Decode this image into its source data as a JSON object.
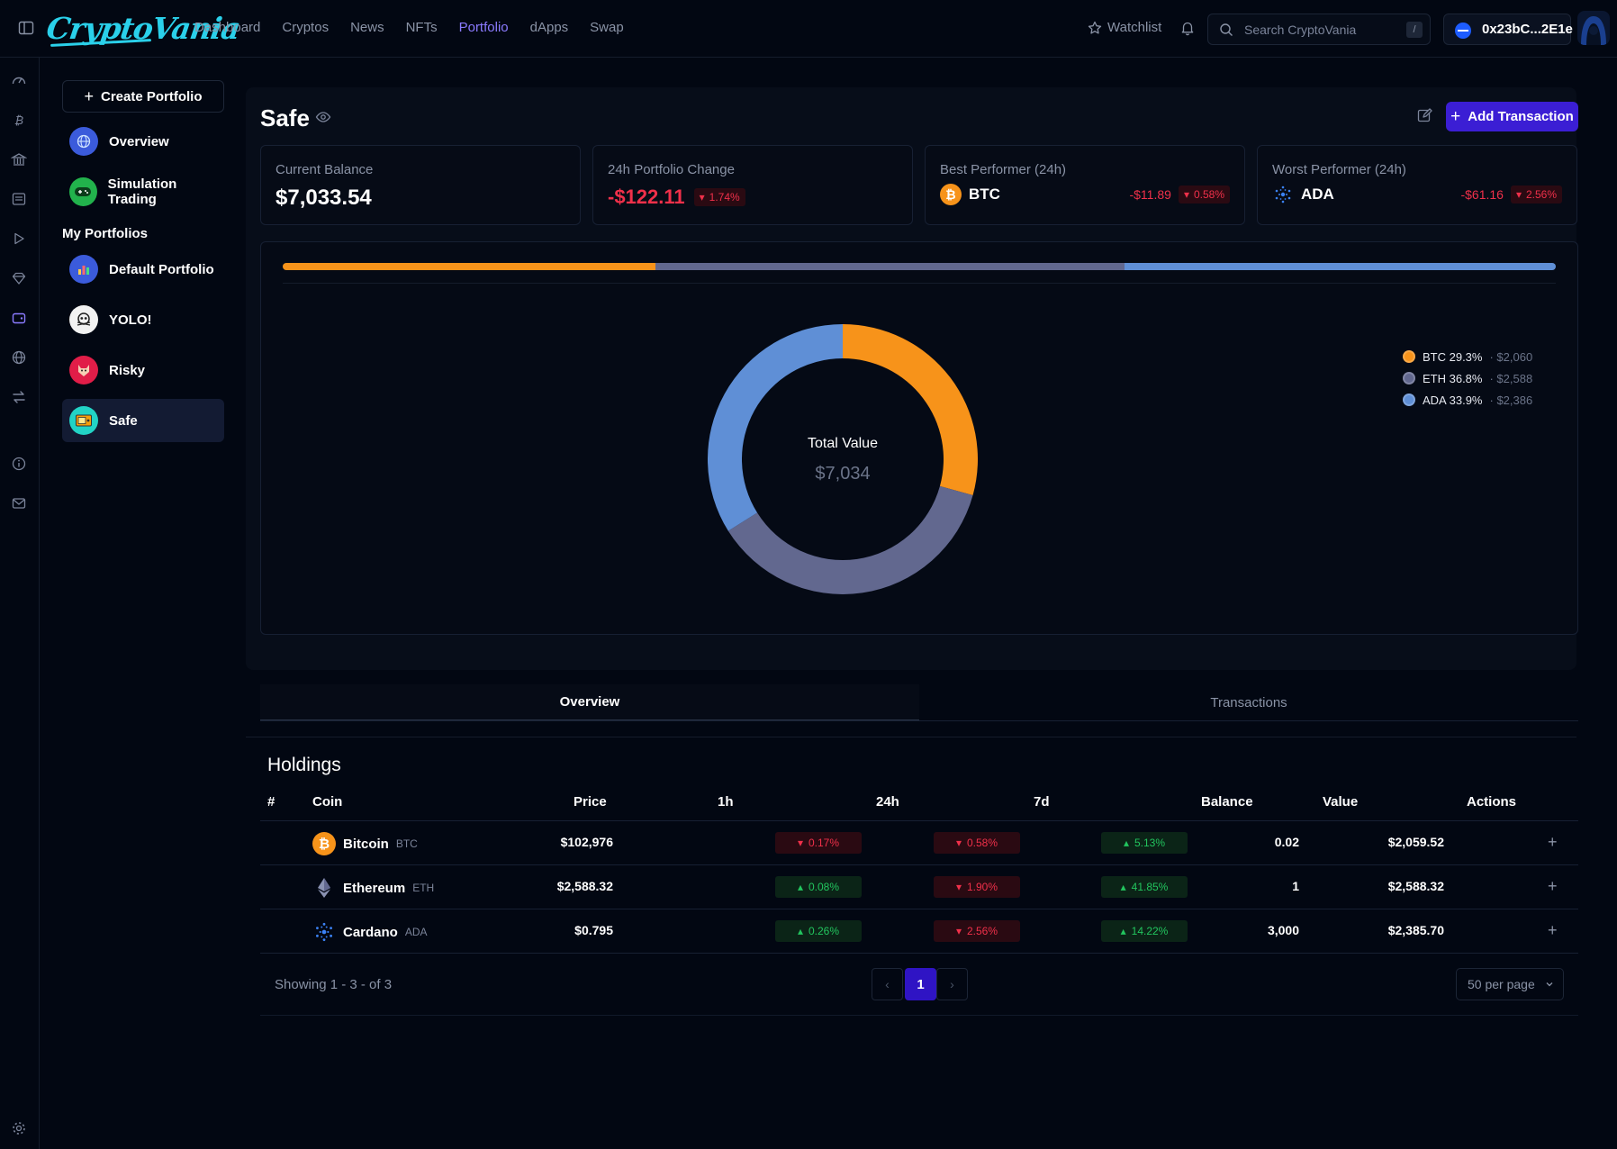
{
  "app": {
    "logo": "CryptoVania"
  },
  "nav": {
    "items": [
      "Dashboard",
      "Cryptos",
      "News",
      "NFTs",
      "Portfolio",
      "dApps",
      "Swap"
    ],
    "active": "Portfolio"
  },
  "header": {
    "watchlist": "Watchlist",
    "search_placeholder": "Search CryptoVania",
    "search_shortcut": "/",
    "wallet": "0x23bC...2E1e"
  },
  "sidebar": {
    "create": "Create Portfolio",
    "top_items": [
      "Overview",
      "Simulation Trading"
    ],
    "heading": "My Portfolios",
    "portfolios": [
      "Default Portfolio",
      "YOLO!",
      "Risky",
      "Safe"
    ],
    "active": "Safe"
  },
  "portfolio": {
    "name": "Safe",
    "add_transaction": "Add Transaction",
    "stats": {
      "balance_label": "Current Balance",
      "balance": "$7,033.54",
      "change_label": "24h Portfolio Change",
      "change": "-$122.11",
      "change_pct": "1.74%",
      "best_label": "Best Performer (24h)",
      "best_coin": "BTC",
      "best_change": "-$11.89",
      "best_pct": "0.58%",
      "worst_label": "Worst Performer (24h)",
      "worst_coin": "ADA",
      "worst_change": "-$61.16",
      "worst_pct": "2.56%"
    }
  },
  "chart_data": {
    "type": "pie",
    "center_label": "Total Value",
    "center_value": "$7,034",
    "slices": [
      {
        "name": "BTC",
        "pct": 29.3,
        "pct_label": "BTC 29.3%",
        "value_label": "$2,060",
        "color": "#f7931a"
      },
      {
        "name": "ETH",
        "pct": 36.8,
        "pct_label": "ETH 36.8%",
        "value_label": "$2,588",
        "color": "#62688f"
      },
      {
        "name": "ADA",
        "pct": 33.9,
        "pct_label": "ADA 33.9%",
        "value_label": "$2,386",
        "color": "#5f8fd6"
      }
    ]
  },
  "tabs": [
    "Overview",
    "Transactions"
  ],
  "holdings": {
    "title": "Holdings",
    "columns": [
      "#",
      "Coin",
      "Price",
      "1h",
      "24h",
      "7d",
      "Balance",
      "Value",
      "Actions"
    ],
    "rows": [
      {
        "name": "Bitcoin",
        "symbol": "BTC",
        "price": "$102,976",
        "h1": "0.17%",
        "h1_dir": "down",
        "h24": "0.58%",
        "h24_dir": "down",
        "d7": "5.13%",
        "d7_dir": "up",
        "balance": "0.02",
        "value": "$2,059.52"
      },
      {
        "name": "Ethereum",
        "symbol": "ETH",
        "price": "$2,588.32",
        "h1": "0.08%",
        "h1_dir": "up",
        "h24": "1.90%",
        "h24_dir": "down",
        "d7": "41.85%",
        "d7_dir": "up",
        "balance": "1",
        "value": "$2,588.32"
      },
      {
        "name": "Cardano",
        "symbol": "ADA",
        "price": "$0.795",
        "h1": "0.26%",
        "h1_dir": "up",
        "h24": "2.56%",
        "h24_dir": "down",
        "d7": "14.22%",
        "d7_dir": "up",
        "balance": "3,000",
        "value": "$2,385.70"
      }
    ],
    "showing": "Showing 1 - 3 - of 3",
    "page": "1",
    "per_page": "50 per page"
  }
}
